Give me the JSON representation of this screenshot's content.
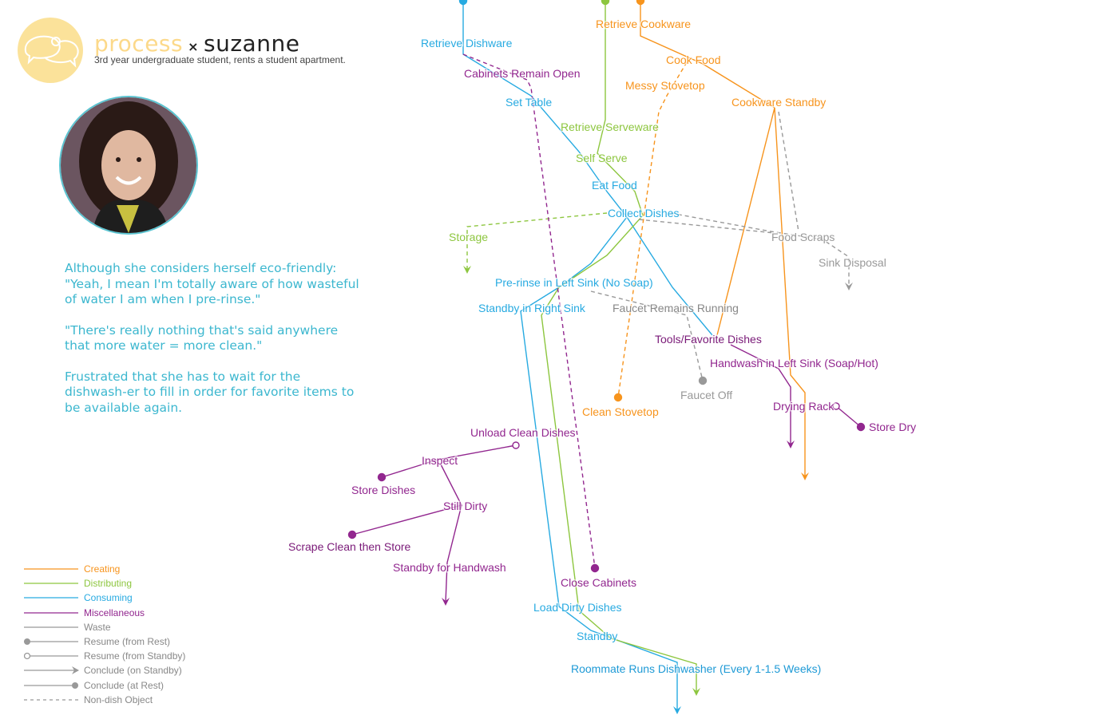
{
  "header": {
    "brand": "process",
    "separator": "×",
    "persona": "suzanne",
    "subtitle": "3rd year undergraduate student, rents a student apartment.",
    "logo_icon": "speech-bubbles-icon"
  },
  "quotes": [
    "Although she considers herself eco-friendly: \"Yeah, I mean I'm totally aware of how wasteful of water I am when I pre-rinse.\"",
    "\"There's really nothing that's said anywhere that more water = more clean.\"",
    "Frustrated that she has to wait for the dishwash-er to fill in order for favorite items to be available again."
  ],
  "colors": {
    "creating": "#f7941d",
    "distributing": "#8dc63f",
    "consuming": "#27aae1",
    "misc": "#92278f",
    "waste": "#999999",
    "quote": "#3cb7cf",
    "logo": "#fbe29a"
  },
  "legend": [
    {
      "label": "Creating",
      "color": "#f7941d",
      "style": "solid"
    },
    {
      "label": "Distributing",
      "color": "#8dc63f",
      "style": "solid"
    },
    {
      "label": "Consuming",
      "color": "#27aae1",
      "style": "solid"
    },
    {
      "label": "Miscellaneous",
      "color": "#92278f",
      "style": "solid"
    },
    {
      "label": "Waste",
      "color": "#999999",
      "style": "solid"
    },
    {
      "label": "Resume (from Rest)",
      "color": "#999999",
      "style": "dot-start"
    },
    {
      "label": "Resume (from Standby)",
      "color": "#999999",
      "style": "open-start"
    },
    {
      "label": "Conclude (on Standby)",
      "color": "#999999",
      "style": "arrow-end"
    },
    {
      "label": "Conclude (at Rest)",
      "color": "#999999",
      "style": "dot-end"
    },
    {
      "label": "Non-dish Object",
      "color": "#999999",
      "style": "dashed"
    }
  ],
  "nodes": {
    "retrieve_dishware": "Retrieve Dishware",
    "retrieve_cookware": "Retrieve Cookware",
    "cook_food": "Cook Food",
    "cabinets_open": "Cabinets Remain Open",
    "messy_stovetop": "Messy Stovetop",
    "set_table": "Set Table",
    "cookware_standby": "Cookware Standby",
    "retrieve_serveware": "Retrieve Serveware",
    "self_serve": "Self Serve",
    "eat_food": "Eat Food",
    "collect_dishes": "Collect Dishes",
    "storage": "Storage",
    "food_scraps": "Food Scraps",
    "sink_disposal": "Sink Disposal",
    "prerinse": "Pre-rinse in Left Sink (No Soap)",
    "standby_right": "Standby in Right Sink",
    "faucet_running": "Faucet Remains Running",
    "tools_favorite": "Tools/Favorite Dishes",
    "handwash": "Handwash in Left Sink (Soap/Hot)",
    "faucet_off": "Faucet Off",
    "drying_rack": "Drying Rack",
    "store_dry": "Store Dry",
    "clean_stovetop": "Clean Stovetop",
    "unload_clean": "Unload Clean Dishes",
    "inspect": "Inspect",
    "store_dishes": "Store Dishes",
    "still_dirty": "Still Dirty",
    "scrape_clean": "Scrape Clean then Store",
    "standby_handwash": "Standby for Handwash",
    "close_cabinets": "Close Cabinets",
    "load_dirty": "Load Dirty Dishes",
    "standby": "Standby",
    "roommate": "Roommate Runs Dishwasher (Every 1-1.5 Weeks)"
  }
}
